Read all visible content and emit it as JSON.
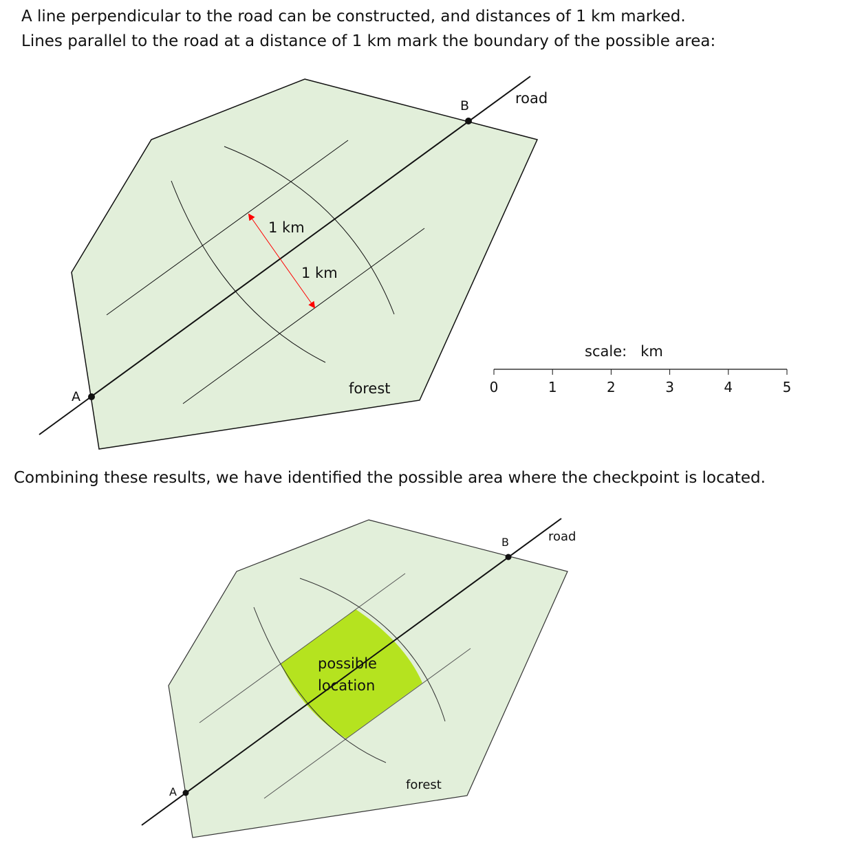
{
  "intro": {
    "line1": "A line perpendicular to the road can be constructed, and distances of 1 km marked.",
    "line2": "Lines parallel to the road at a distance of 1 km mark the boundary of the possible area:"
  },
  "diagram1": {
    "point_a": "A",
    "point_b": "B",
    "road_label": "road",
    "forest_label": "forest",
    "distance_label_1": "1 km",
    "distance_label_2": "1 km",
    "scale": {
      "title": "scale:   km",
      "ticks": [
        "0",
        "1",
        "2",
        "3",
        "4",
        "5"
      ]
    }
  },
  "conclusion": "Combining these results, we have identified the possible area where the checkpoint is located.",
  "diagram2": {
    "point_a": "A",
    "point_b": "B",
    "road_label": "road",
    "forest_label": "forest",
    "area_label_1": "possible",
    "area_label_2": "location"
  },
  "colors": {
    "forest": "#e2efda",
    "possible_area": "#b5e31f",
    "arrow": "#ff0000"
  }
}
